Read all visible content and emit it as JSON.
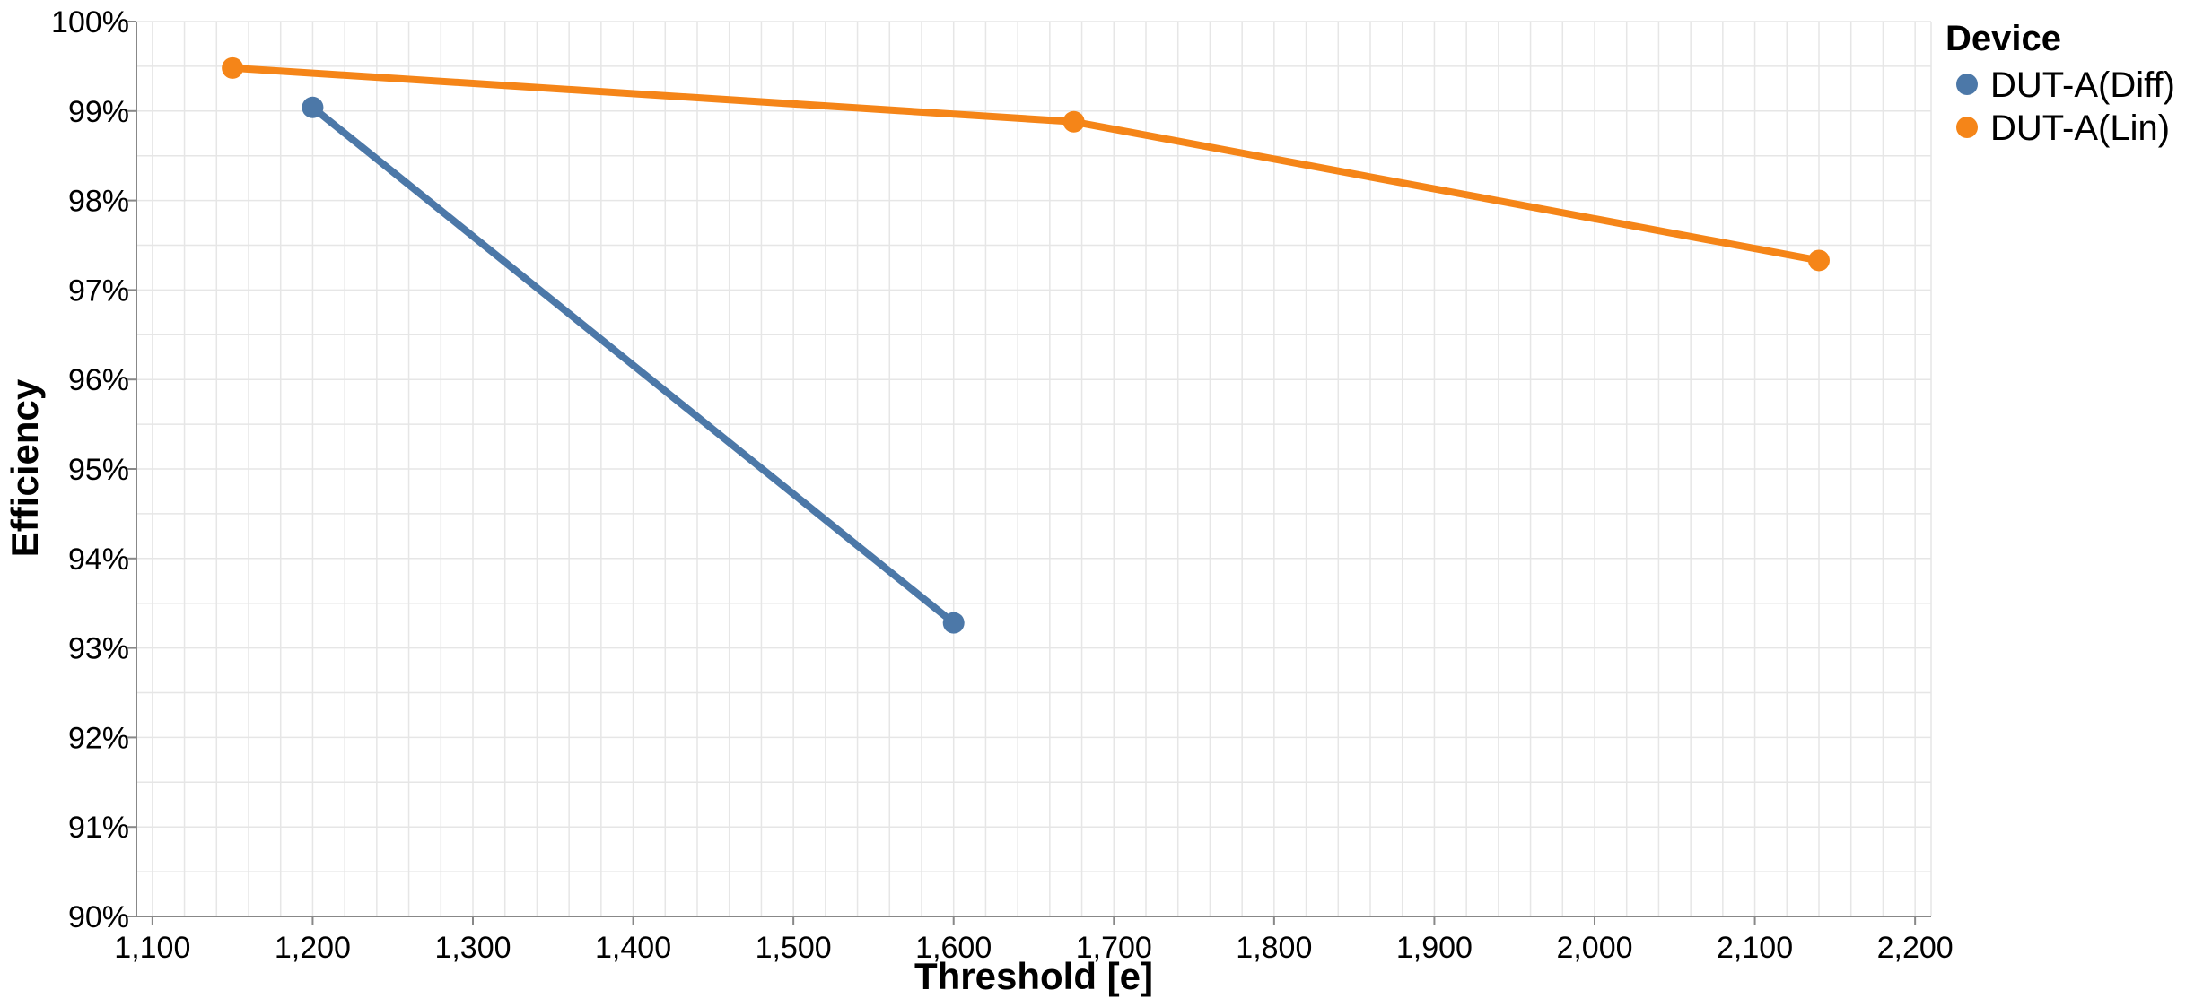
{
  "chart_data": {
    "type": "line",
    "title": "",
    "xlabel": "Threshold [e]",
    "ylabel": "Efficiency",
    "xlim": [
      1090,
      2210
    ],
    "ylim": [
      0.9,
      1.0
    ],
    "x_ticks": [
      1100,
      1200,
      1300,
      1400,
      1500,
      1600,
      1700,
      1800,
      1900,
      2000,
      2100,
      2200
    ],
    "x_tick_labels": [
      "1,100",
      "1,200",
      "1,300",
      "1,400",
      "1,500",
      "1,600",
      "1,700",
      "1,800",
      "1,900",
      "2,000",
      "2,100",
      "2,200"
    ],
    "y_ticks": [
      0.9,
      0.91,
      0.92,
      0.93,
      0.94,
      0.95,
      0.96,
      0.97,
      0.98,
      0.99,
      1.0
    ],
    "y_tick_labels": [
      "90%",
      "91%",
      "92%",
      "93%",
      "94%",
      "95%",
      "96%",
      "97%",
      "98%",
      "99%",
      "100%"
    ],
    "grid": true,
    "legend": {
      "title": "Device",
      "placement": "top-right"
    },
    "series": [
      {
        "name": "DUT-A(Diff)",
        "color": "#4c78a8",
        "x": [
          1200,
          1600
        ],
        "y": [
          0.9904,
          0.9328
        ]
      },
      {
        "name": "DUT-A(Lin)",
        "color": "#f58518",
        "x": [
          1150,
          1675,
          2140
        ],
        "y": [
          0.9948,
          0.9888,
          0.9733
        ]
      }
    ]
  }
}
